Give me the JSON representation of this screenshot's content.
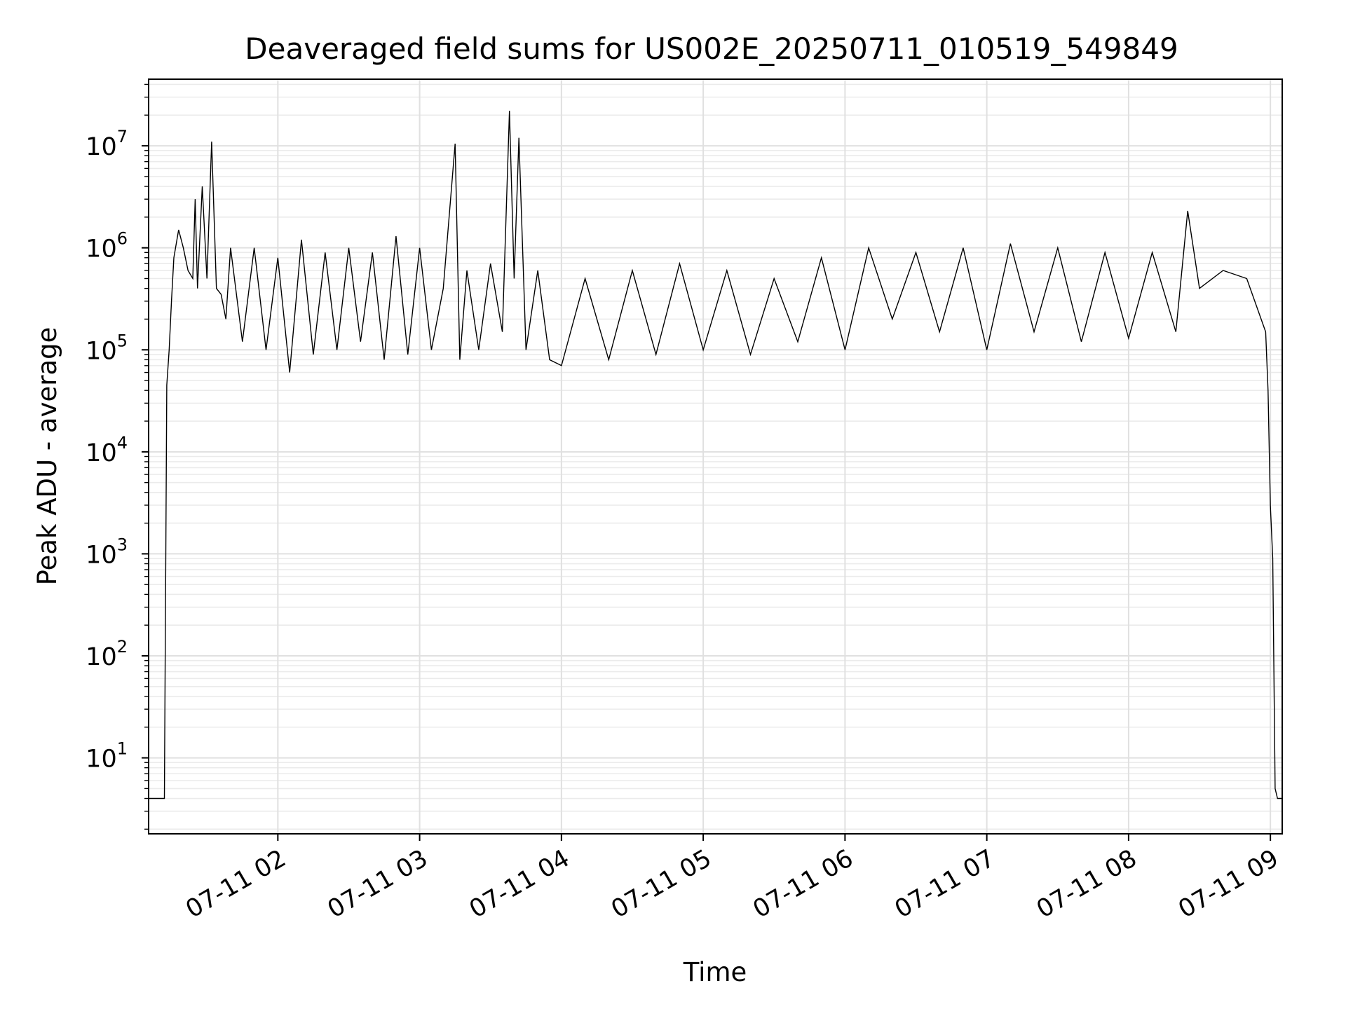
{
  "chart_data": {
    "type": "line",
    "title": "Deaveraged field sums for US002E_20250711_010519_549849",
    "xlabel": "Time",
    "ylabel": "Peak ADU - average",
    "yscale": "log",
    "grid": true,
    "xlim": [
      "2025-07-11 01:05:19",
      "2025-07-11 09:05:00"
    ],
    "ylim": [
      1.8,
      45000000
    ],
    "x_ticks": [
      "07-11 02",
      "07-11 03",
      "07-11 04",
      "07-11 05",
      "07-11 06",
      "07-11 07",
      "07-11 08",
      "07-11 09"
    ],
    "y_ticks": [
      {
        "base": "10",
        "exp": "1"
      },
      {
        "base": "10",
        "exp": "2"
      },
      {
        "base": "10",
        "exp": "3"
      },
      {
        "base": "10",
        "exp": "4"
      },
      {
        "base": "10",
        "exp": "5"
      },
      {
        "base": "10",
        "exp": "6"
      },
      {
        "base": "10",
        "exp": "7"
      }
    ],
    "line_color": "#000000",
    "series": [
      {
        "x": [
          "01:05:19",
          "01:06",
          "01:07",
          "01:08",
          "01:09",
          "01:10",
          "01:11",
          "01:12",
          "01:13",
          "01:14",
          "01:15",
          "01:16",
          "01:18",
          "01:20",
          "01:22",
          "01:24",
          "01:25",
          "01:26",
          "01:28",
          "01:30",
          "01:32",
          "01:34",
          "01:36",
          "01:38",
          "01:40",
          "01:45",
          "01:50",
          "01:55",
          "02:00",
          "02:05",
          "02:10",
          "02:15",
          "02:20",
          "02:25",
          "02:30",
          "02:35",
          "02:40",
          "02:45",
          "02:50",
          "02:55",
          "03:00",
          "03:05",
          "03:10",
          "03:15",
          "03:17",
          "03:20",
          "03:25",
          "03:30",
          "03:35",
          "03:38",
          "03:40",
          "03:42",
          "03:45",
          "03:50",
          "03:55",
          "04:00",
          "04:10",
          "04:20",
          "04:30",
          "04:40",
          "04:50",
          "05:00",
          "05:10",
          "05:20",
          "05:30",
          "05:40",
          "05:50",
          "06:00",
          "06:10",
          "06:20",
          "06:30",
          "06:40",
          "06:50",
          "07:00",
          "07:10",
          "07:20",
          "07:30",
          "07:40",
          "07:50",
          "08:00",
          "08:10",
          "08:20",
          "08:25",
          "08:30",
          "08:40",
          "08:50",
          "08:58",
          "08:59",
          "09:00",
          "09:01",
          "09:02",
          "09:03",
          "09:04",
          "09:05"
        ],
        "y": [
          4,
          4,
          4,
          4,
          4,
          4,
          4,
          4,
          45000,
          100000,
          300000,
          800000,
          1500000,
          1000000,
          600000,
          500000,
          3000000,
          400000,
          4000000,
          500000,
          11000000,
          400000,
          350000,
          200000,
          1000000,
          120000,
          1000000,
          100000,
          800000,
          60000,
          1200000,
          90000,
          900000,
          100000,
          1000000,
          120000,
          900000,
          80000,
          1300000,
          90000,
          1000000,
          100000,
          400000,
          10500000,
          80000,
          600000,
          100000,
          700000,
          150000,
          22000000,
          500000,
          12000000,
          100000,
          600000,
          80000,
          70000,
          500000,
          80000,
          600000,
          90000,
          700000,
          100000,
          600000,
          90000,
          500000,
          120000,
          800000,
          100000,
          1000000,
          200000,
          900000,
          150000,
          1000000,
          100000,
          1100000,
          150000,
          1000000,
          120000,
          900000,
          130000,
          900000,
          150000,
          2300000,
          400000,
          600000,
          500000,
          150000,
          40000,
          3000,
          900,
          5,
          4,
          4,
          4
        ]
      }
    ]
  }
}
